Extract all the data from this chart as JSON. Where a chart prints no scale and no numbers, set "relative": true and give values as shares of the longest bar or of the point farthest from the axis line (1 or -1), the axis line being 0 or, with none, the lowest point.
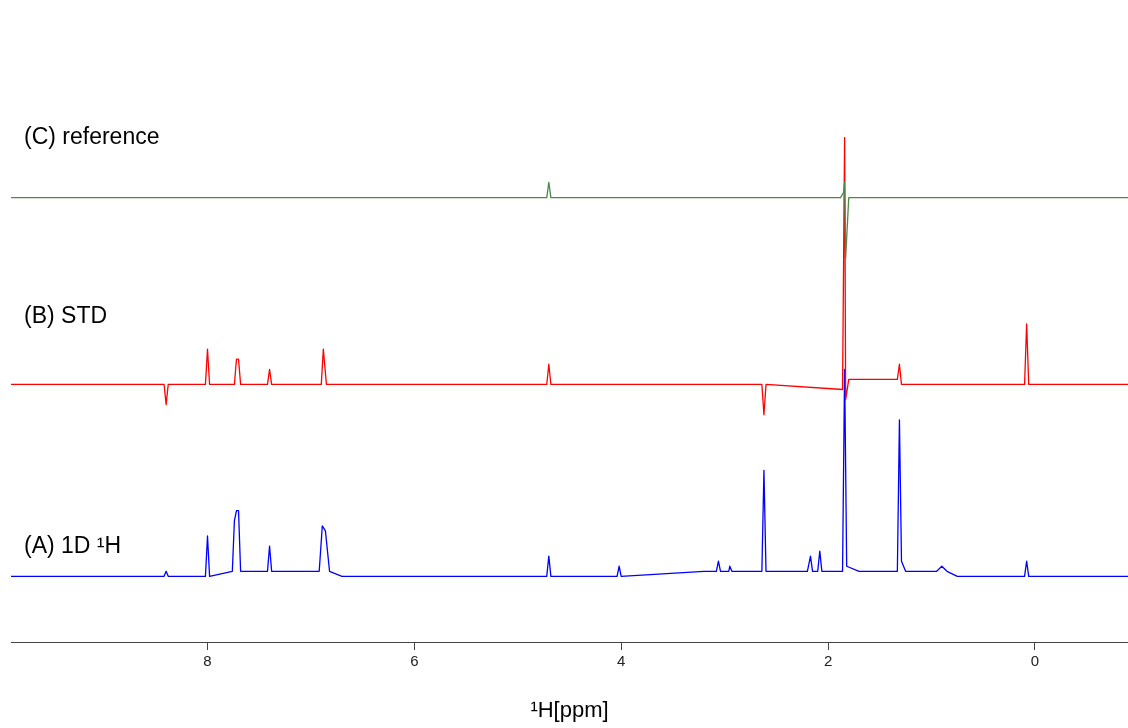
{
  "chart_data": {
    "type": "line",
    "xlabel": "¹H[ppm]",
    "relative": true,
    "xlim": [
      9.9,
      -0.9
    ],
    "xticks": [
      8,
      6,
      4,
      2,
      0
    ],
    "tick_labels": "x",
    "marker": "none",
    "line_style": "solid",
    "legend": false,
    "series": [
      {
        "name": "(C) reference",
        "color": "#4a8a4a",
        "x": [
          9.9,
          4.72,
          4.7,
          4.68,
          1.88,
          1.85,
          1.84,
          1.83,
          1.8,
          -0.9
        ],
        "values": [
          0.88,
          0.88,
          0.91,
          0.88,
          0.88,
          0.89,
          0.91,
          0.76,
          0.88,
          0.88
        ]
      },
      {
        "name": "(B) STD",
        "color": "#ff0000",
        "x": [
          9.9,
          8.42,
          8.4,
          8.38,
          8.02,
          8.0,
          7.98,
          7.74,
          7.72,
          7.7,
          7.68,
          7.42,
          7.4,
          7.38,
          6.9,
          6.88,
          6.85,
          4.72,
          4.7,
          4.68,
          2.64,
          2.62,
          2.6,
          1.86,
          1.84,
          1.83,
          1.8,
          1.33,
          1.31,
          1.29,
          0.1,
          0.08,
          0.06,
          -0.9
        ],
        "values": [
          0.51,
          0.51,
          0.47,
          0.51,
          0.51,
          0.58,
          0.51,
          0.51,
          0.56,
          0.56,
          0.51,
          0.51,
          0.54,
          0.51,
          0.51,
          0.58,
          0.51,
          0.51,
          0.55,
          0.51,
          0.51,
          0.45,
          0.51,
          0.5,
          1,
          0.48,
          0.52,
          0.52,
          0.55,
          0.51,
          0.51,
          0.63,
          0.51,
          0.51
        ]
      },
      {
        "name": "(A) 1D ¹H",
        "color": "#0000ff",
        "x": [
          9.9,
          8.42,
          8.4,
          8.38,
          8.02,
          8.0,
          7.98,
          7.76,
          7.74,
          7.72,
          7.7,
          7.68,
          7.42,
          7.4,
          7.38,
          6.92,
          6.89,
          6.86,
          6.82,
          6.7,
          4.72,
          4.7,
          4.68,
          4.04,
          4.02,
          4.0,
          3.2,
          3.08,
          3.06,
          3.04,
          2.96,
          2.95,
          2.93,
          2.64,
          2.62,
          2.6,
          2.2,
          2.17,
          2.15,
          2.1,
          2.08,
          2.06,
          1.86,
          1.84,
          1.82,
          1.7,
          1.65,
          1.6,
          1.33,
          1.31,
          1.29,
          1.25,
          1.2,
          0.95,
          0.9,
          0.85,
          0.75,
          0.1,
          0.08,
          0.06,
          -0.9
        ],
        "values": [
          0.13,
          0.13,
          0.14,
          0.13,
          0.13,
          0.21,
          0.13,
          0.14,
          0.24,
          0.26,
          0.26,
          0.14,
          0.14,
          0.19,
          0.14,
          0.14,
          0.23,
          0.22,
          0.14,
          0.13,
          0.13,
          0.17,
          0.13,
          0.13,
          0.15,
          0.13,
          0.14,
          0.14,
          0.16,
          0.14,
          0.14,
          0.15,
          0.14,
          0.14,
          0.34,
          0.14,
          0.14,
          0.17,
          0.14,
          0.14,
          0.18,
          0.14,
          0.14,
          0.54,
          0.15,
          0.14,
          0.14,
          0.14,
          0.14,
          0.44,
          0.16,
          0.14,
          0.14,
          0.14,
          0.15,
          0.14,
          0.13,
          0.13,
          0.16,
          0.13,
          0.13
        ]
      }
    ]
  }
}
